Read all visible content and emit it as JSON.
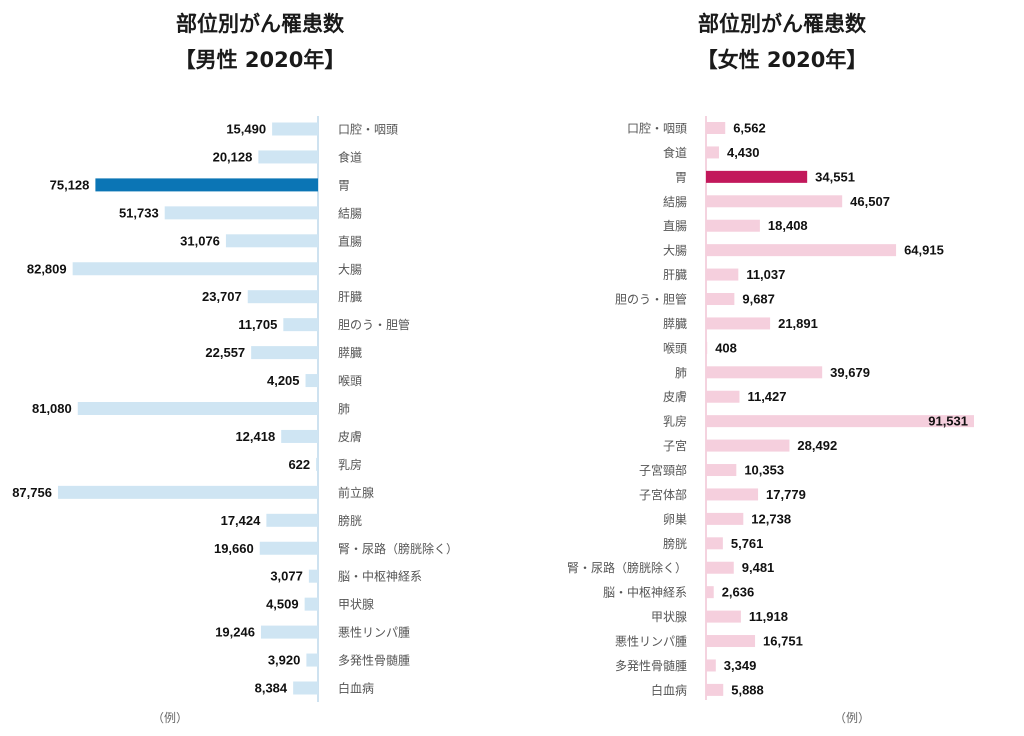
{
  "chart_data": [
    {
      "type": "bar",
      "title": "部位別がん罹患数",
      "subtitle": "【男性 2020年】",
      "note": "（例）",
      "colors": {
        "bar": "#cfe5f3",
        "highlight": "#0b75b5"
      },
      "highlight": "胃",
      "categories": [
        "口腔・咽頭",
        "食道",
        "胃",
        "結腸",
        "直腸",
        "大腸",
        "肝臓",
        "胆のう・胆管",
        "膵臓",
        "喉頭",
        "肺",
        "皮膚",
        "乳房",
        "前立腺",
        "膀胱",
        "腎・尿路（膀胱除く）",
        "脳・中枢神経系",
        "甲状腺",
        "悪性リンパ腫",
        "多発性骨髄腫",
        "白血病"
      ],
      "values": [
        15490,
        20128,
        75128,
        51733,
        31076,
        82809,
        23707,
        11705,
        22557,
        4205,
        81080,
        12418,
        622,
        87756,
        17424,
        19660,
        3077,
        4509,
        19246,
        3920,
        8384
      ],
      "labels": [
        "15,490",
        "20,128",
        "75,128",
        "51,733",
        "31,076",
        "82,809",
        "23,707",
        "11,705",
        "22,557",
        "4,205",
        "81,080",
        "12,418",
        "622",
        "87,756",
        "17,424",
        "19,660",
        "3,077",
        "4,509",
        "19,246",
        "3,920",
        "8,384"
      ]
    },
    {
      "type": "bar",
      "title": "部位別がん罹患数",
      "subtitle": "【女性 2020年】",
      "note": "（例）",
      "colors": {
        "bar": "#f5cfdd",
        "highlight": "#c2185b"
      },
      "highlight": "胃",
      "categories": [
        "口腔・咽頭",
        "食道",
        "胃",
        "結腸",
        "直腸",
        "大腸",
        "肝臓",
        "胆のう・胆管",
        "膵臓",
        "喉頭",
        "肺",
        "皮膚",
        "乳房",
        "子宮",
        "子宮頸部",
        "子宮体部",
        "卵巣",
        "膀胱",
        "腎・尿路（膀胱除く）",
        "脳・中枢神経系",
        "甲状腺",
        "悪性リンパ腫",
        "多発性骨髄腫",
        "白血病"
      ],
      "values": [
        6562,
        4430,
        34551,
        46507,
        18408,
        64915,
        11037,
        9687,
        21891,
        408,
        39679,
        11427,
        91531,
        28492,
        10353,
        17779,
        12738,
        5761,
        9481,
        2636,
        11918,
        16751,
        3349,
        5888
      ],
      "labels": [
        "6,562",
        "4,430",
        "34,551",
        "46,507",
        "18,408",
        "64,915",
        "11,037",
        "9,687",
        "21,891",
        "408",
        "39,679",
        "11,427",
        "91,531",
        "28,492",
        "10,353",
        "17,779",
        "12,738",
        "5,761",
        "9,481",
        "2,636",
        "11,918",
        "16,751",
        "3,349",
        "5,888"
      ]
    }
  ]
}
